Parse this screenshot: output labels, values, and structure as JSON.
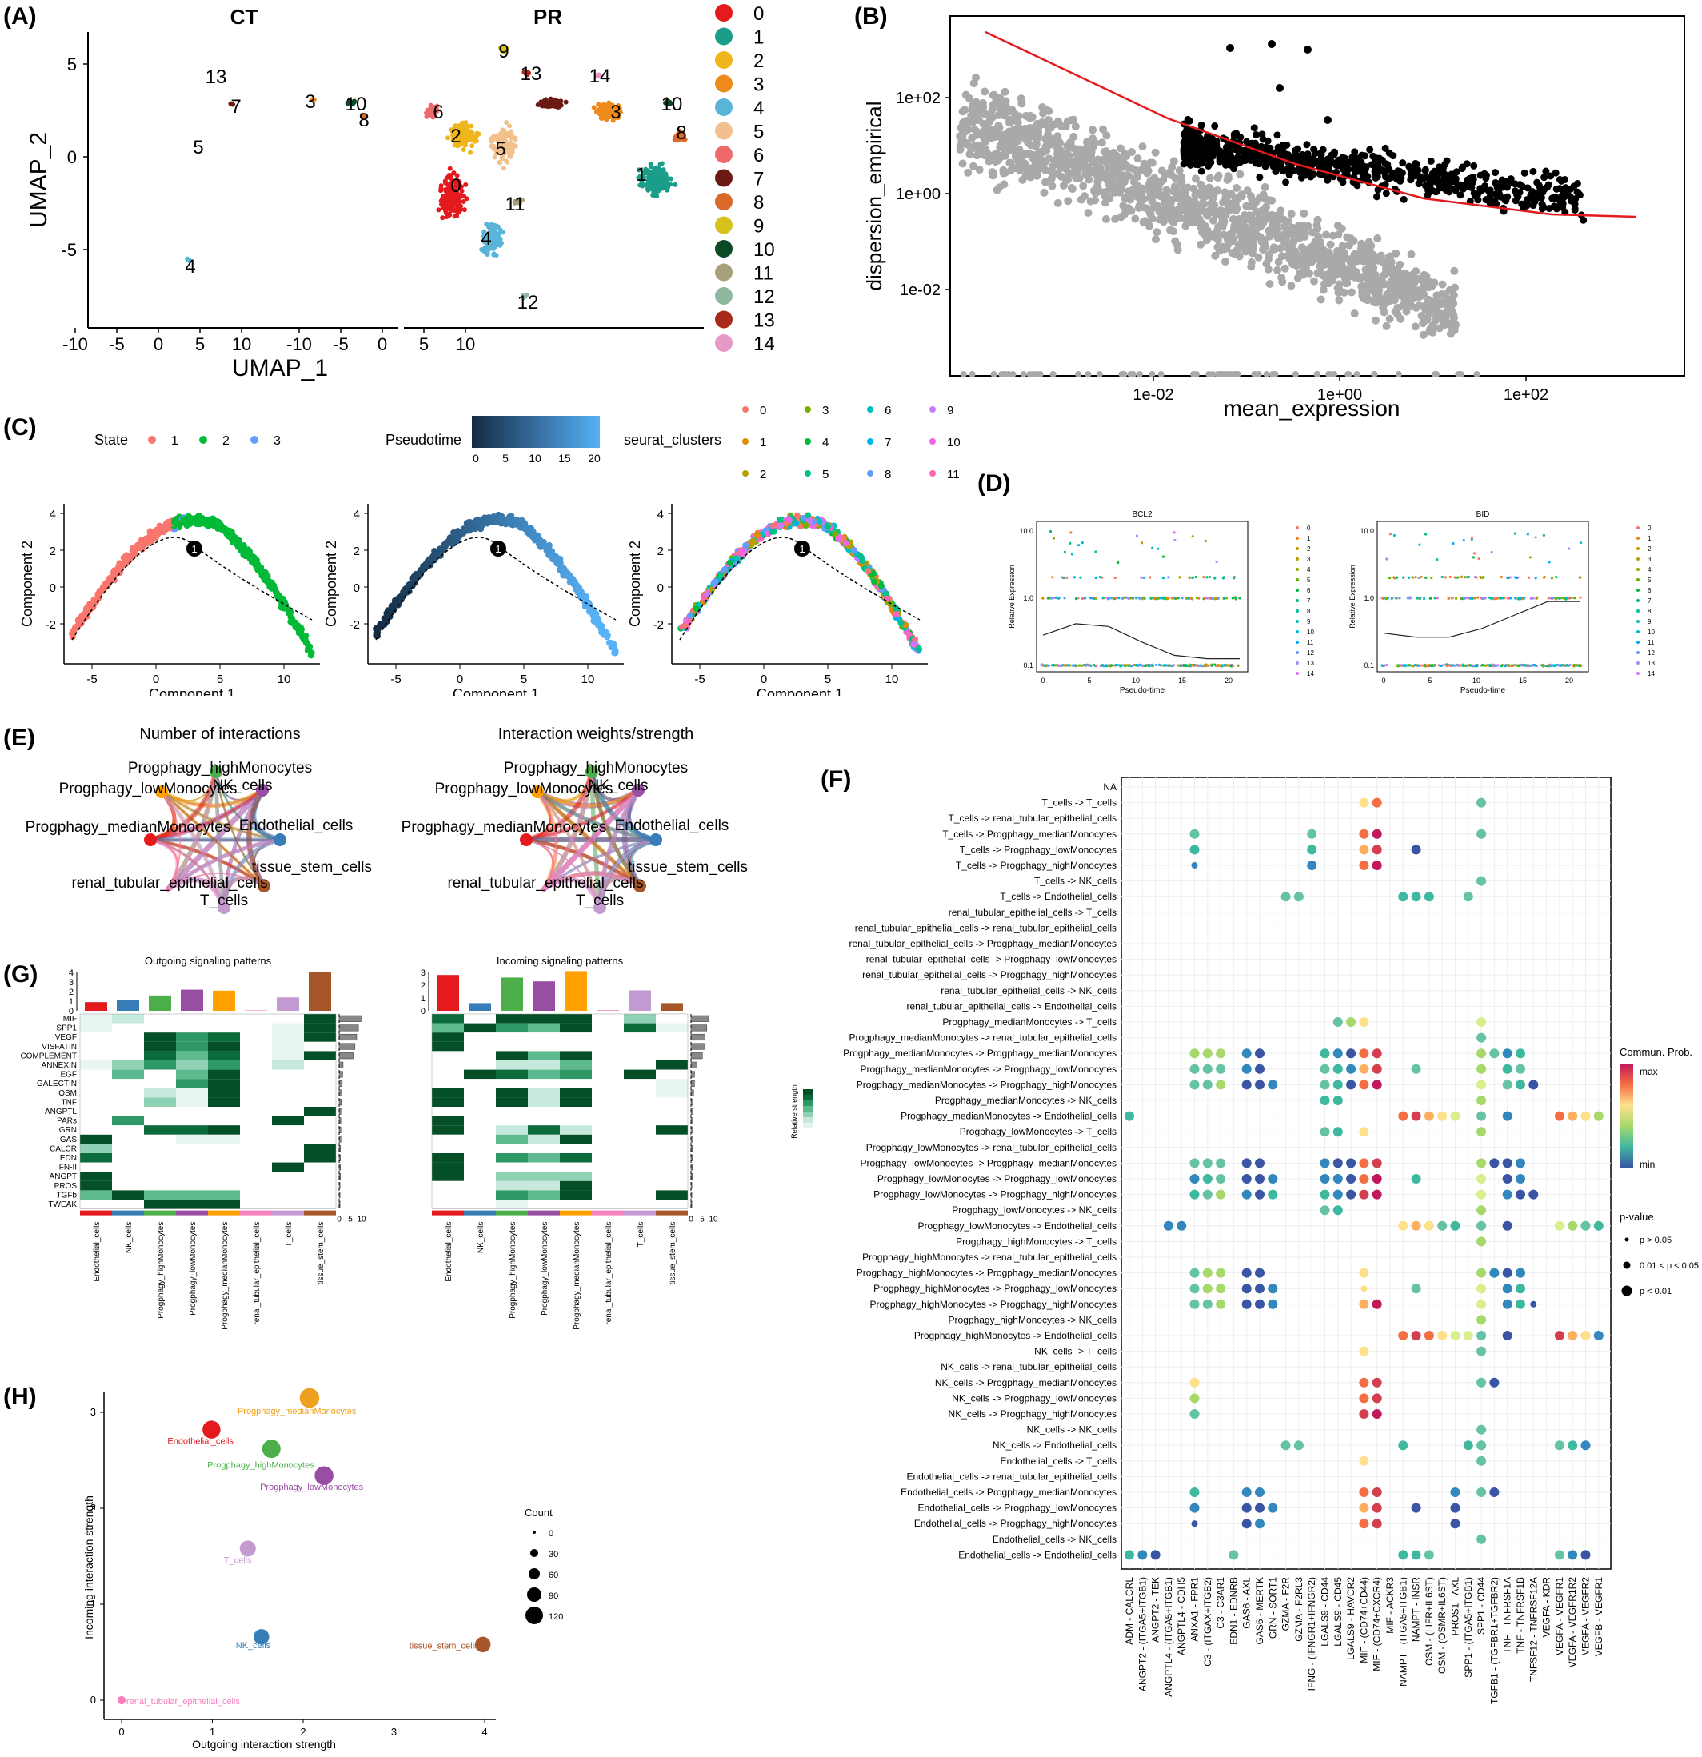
{
  "panels": {
    "A": {
      "label": "(A)",
      "facets": [
        "CT",
        "PR"
      ],
      "xlabel": "UMAP_1",
      "ylabel": "UMAP_2",
      "xticks": [
        "-10",
        "-5",
        "0",
        "5",
        "10"
      ],
      "yticks": [
        "5",
        "0",
        "-5"
      ],
      "legend": [
        {
          "id": "0",
          "color": "#e41a1c"
        },
        {
          "id": "1",
          "color": "#1b9e89"
        },
        {
          "id": "2",
          "color": "#f0b41c"
        },
        {
          "id": "3",
          "color": "#ee8a1a"
        },
        {
          "id": "4",
          "color": "#5ab4d8"
        },
        {
          "id": "5",
          "color": "#f2c08c"
        },
        {
          "id": "6",
          "color": "#ee6a6a"
        },
        {
          "id": "7",
          "color": "#6b1a14"
        },
        {
          "id": "8",
          "color": "#d96a2a"
        },
        {
          "id": "9",
          "color": "#d6c21a"
        },
        {
          "id": "10",
          "color": "#0c4a26"
        },
        {
          "id": "11",
          "color": "#a8a07a"
        },
        {
          "id": "12",
          "color": "#8fb8a0"
        },
        {
          "id": "13",
          "color": "#a82a1a"
        },
        {
          "id": "14",
          "color": "#e79ac8"
        }
      ],
      "ct_labels": [
        "13",
        "7",
        "3",
        "10",
        "8",
        "5",
        "4"
      ],
      "pr_labels": [
        "9",
        "13",
        "14",
        "6",
        "2",
        "5",
        "3",
        "10",
        "8",
        "0",
        "1",
        "11",
        "4",
        "12"
      ]
    },
    "B": {
      "label": "(B)",
      "xlabel": "mean_expression",
      "ylabel": "dispersion_empirical",
      "xticks": [
        "1e-02",
        "1e+00",
        "1e+02"
      ],
      "yticks": [
        "1e+02",
        "1e+00",
        "1e-02"
      ]
    },
    "C": {
      "label": "(C)",
      "legend_state": {
        "title": "State",
        "items": [
          "1",
          "2",
          "3"
        ],
        "colors": [
          "#f8766d",
          "#00ba38",
          "#619cff"
        ]
      },
      "legend_pseudotime": {
        "title": "Pseudotime",
        "ticks": [
          "0",
          "5",
          "10",
          "15",
          "20"
        ]
      },
      "legend_clusters": {
        "title": "seurat_clusters",
        "items": [
          "0",
          "1",
          "2",
          "3",
          "4",
          "5",
          "6",
          "7",
          "8",
          "9",
          "10",
          "11"
        ]
      },
      "xlabel": "Component 1",
      "ylabel": "Component 2",
      "xticks": [
        "-5",
        "0",
        "5",
        "10"
      ],
      "yticks": [
        "4",
        "2",
        "0",
        "-2"
      ],
      "branch_label": "1"
    },
    "D": {
      "label": "(D)",
      "plots": [
        {
          "title": "BCL2",
          "curve": [
            0.45,
            0.62,
            0.58,
            0.35,
            0.15,
            0.1,
            0.1
          ]
        },
        {
          "title": "BID",
          "curve": [
            0.48,
            0.42,
            0.42,
            0.55,
            0.75,
            0.95,
            0.95
          ]
        }
      ],
      "xlabel": "Pseudo-time",
      "ylabel": "Relative Expression",
      "xticks": [
        "0",
        "5",
        "10",
        "15",
        "20"
      ],
      "yticks": [
        "10.0",
        "1.0",
        "0.1"
      ],
      "legend": [
        "0",
        "1",
        "2",
        "3",
        "4",
        "5",
        "6",
        "7",
        "8",
        "9",
        "10",
        "11",
        "12",
        "13",
        "14"
      ]
    },
    "E": {
      "label": "(E)",
      "titles": [
        "Number of interactions",
        "Interaction weights/strength"
      ],
      "nodes": [
        "Progphagy_highMonocytes",
        "NK_cells",
        "Progphagy_lowMonocytes",
        "Progphagy_medianMonocytes",
        "Endothelial_cells",
        "tissue_stem_cells",
        "renal_tubular_epithelial_cells",
        "T_cells"
      ]
    },
    "F": {
      "label": "(F)",
      "rows": [
        "NA",
        "T_cells -> T_cells",
        "T_cells -> renal_tubular_epithelial_cells",
        "T_cells -> Progphagy_medianMonocytes",
        "T_cells -> Progphagy_lowMonocytes",
        "T_cells -> Progphagy_highMonocytes",
        "T_cells -> NK_cells",
        "T_cells -> Endothelial_cells",
        "renal_tubular_epithelial_cells -> T_cells",
        "renal_tubular_epithelial_cells -> renal_tubular_epithelial_cells",
        "renal_tubular_epithelial_cells -> Progphagy_medianMonocytes",
        "renal_tubular_epithelial_cells -> Progphagy_lowMonocytes",
        "renal_tubular_epithelial_cells -> Progphagy_highMonocytes",
        "renal_tubular_epithelial_cells -> NK_cells",
        "renal_tubular_epithelial_cells -> Endothelial_cells",
        "Progphagy_medianMonocytes -> T_cells",
        "Progphagy_medianMonocytes -> renal_tubular_epithelial_cells",
        "Progphagy_medianMonocytes -> Progphagy_medianMonocytes",
        "Progphagy_medianMonocytes -> Progphagy_lowMonocytes",
        "Progphagy_medianMonocytes -> Progphagy_highMonocytes",
        "Progphagy_medianMonocytes -> NK_cells",
        "Progphagy_medianMonocytes -> Endothelial_cells",
        "Progphagy_lowMonocytes -> T_cells",
        "Progphagy_lowMonocytes -> renal_tubular_epithelial_cells",
        "Progphagy_lowMonocytes -> Progphagy_medianMonocytes",
        "Progphagy_lowMonocytes -> Progphagy_lowMonocytes",
        "Progphagy_lowMonocytes -> Progphagy_highMonocytes",
        "Progphagy_lowMonocytes -> NK_cells",
        "Progphagy_lowMonocytes -> Endothelial_cells",
        "Progphagy_highMonocytes -> T_cells",
        "Progphagy_highMonocytes -> renal_tubular_epithelial_cells",
        "Progphagy_highMonocytes -> Progphagy_medianMonocytes",
        "Progphagy_highMonocytes -> Progphagy_lowMonocytes",
        "Progphagy_highMonocytes -> Progphagy_highMonocytes",
        "Progphagy_highMonocytes -> NK_cells",
        "Progphagy_highMonocytes -> Endothelial_cells",
        "NK_cells -> T_cells",
        "NK_cells -> renal_tubular_epithelial_cells",
        "NK_cells -> Progphagy_medianMonocytes",
        "NK_cells -> Progphagy_lowMonocytes",
        "NK_cells -> Progphagy_highMonocytes",
        "NK_cells -> NK_cells",
        "NK_cells -> Endothelial_cells",
        "Endothelial_cells -> T_cells",
        "Endothelial_cells -> renal_tubular_epithelial_cells",
        "Endothelial_cells -> Progphagy_medianMonocytes",
        "Endothelial_cells -> Progphagy_lowMonocytes",
        "Endothelial_cells -> Progphagy_highMonocytes",
        "Endothelial_cells -> NK_cells",
        "Endothelial_cells -> Endothelial_cells"
      ],
      "columns": [
        "ADM - CALCRL",
        "ANGPT2 - (ITGA5+ITGB1)",
        "ANGPT2 - TEK",
        "ANGPTL4 - (ITGA5+ITGB1)",
        "ANGPTL4 - CDH5",
        "ANXA1 - FPR1",
        "C3 - (ITGAX+ITGB2)",
        "C3 - C3AR1",
        "EDN1 - EDNRB",
        "GAS6 - AXL",
        "GAS6 - MERTK",
        "GRN - SORT1",
        "GZMA - F2R",
        "GZMA - F2RL3",
        "IFNG - (IFNGR1+IFNGR2)",
        "LGALS9 - CD44",
        "LGALS9 - CD45",
        "LGALS9 - HAVCR2",
        "MIF - (CD74+CD44)",
        "MIF - (CD74+CXCR4)",
        "MIF - ACKR3",
        "NAMPT - (ITGA5+ITGB1)",
        "NAMPT - INSR",
        "OSM - (LIFR+IL6ST)",
        "OSM - (OSMR+IL6ST)",
        "PROS1 - AXL",
        "SPP1 - (ITGA5+ITGB1)",
        "SPP1 - CD44",
        "TGFB1 - (TGFBR1+TGFBR2)",
        "TNF - TNFRSF1A",
        "TNF - TNFRSF1B",
        "TNFSF12 - TNFRSF12A",
        "VEGFA - KDR",
        "VEGFA - VEGFR1",
        "VEGFA - VEGFR1R2",
        "VEGFA - VEGFR2",
        "VEGFB - VEGFR1"
      ],
      "legend_prob": {
        "title": "Commun. Prob.",
        "max": "max",
        "min": "min"
      },
      "legend_p": {
        "title": "p-value",
        "items": [
          "p > 0.05",
          "0.01 < p < 0.05",
          "p < 0.01"
        ]
      }
    },
    "G": {
      "label": "(G)",
      "titles": [
        "Outgoing signaling patterns",
        "Incoming signaling patterns"
      ],
      "pathways": [
        "MIF",
        "SPP1",
        "VEGF",
        "VISFATIN",
        "COMPLEMENT",
        "ANNEXIN",
        "EGF",
        "GALECTIN",
        "OSM",
        "TNF",
        "ANGPTL",
        "PARs",
        "GRN",
        "GAS",
        "CALCR",
        "EDN",
        "IFN-II",
        "ANGPT",
        "PROS",
        "TGFb",
        "TWEAK"
      ],
      "cells": [
        "Endothelial_cells",
        "NK_cells",
        "Progphagy_highMonocytes",
        "Progphagy_lowMonocytes",
        "Progphagy_medianMonocytes",
        "renal_tubular_epithelial_cells",
        "T_cells",
        "tissue_stem_cells"
      ],
      "cell_colors": [
        "#e41a1c",
        "#377eb8",
        "#4daf4a",
        "#984ea3",
        "#ff9f00",
        "#f781bf",
        "#c49bd0",
        "#a65628"
      ],
      "bar_ticks": [
        "0",
        "1",
        "2",
        "3",
        "4"
      ],
      "in_bar_ticks": [
        "0",
        "1",
        "2",
        "3"
      ],
      "side_ticks": [
        "0",
        "5",
        "10"
      ],
      "legend_title": "Relative strength",
      "legend_ticks": [
        "0",
        "1"
      ]
    },
    "H": {
      "label": "(H)",
      "xlabel": "Outgoing interaction strength",
      "ylabel": "Incoming interaction strength",
      "xticks": [
        "0",
        "1",
        "2",
        "3",
        "4"
      ],
      "yticks": [
        "0",
        "1",
        "2",
        "3"
      ],
      "legend_title": "Count",
      "legend_items": [
        "0",
        "30",
        "60",
        "90",
        "120"
      ]
    }
  },
  "chart_data": [
    {
      "type": "scatter",
      "panel": "H",
      "xlabel": "Outgoing interaction strength",
      "ylabel": "Incoming interaction strength",
      "xlim": [
        -0.15,
        4.2
      ],
      "ylim": [
        -0.05,
        3.3
      ],
      "points": [
        {
          "name": "Progphagy_medianMonocytes",
          "x": 2.07,
          "y": 3.15,
          "count": 95,
          "color": "#f0a020"
        },
        {
          "name": "Endothelial_cells",
          "x": 0.99,
          "y": 2.82,
          "count": 75,
          "color": "#e41a1c"
        },
        {
          "name": "Progphagy_highMonocytes",
          "x": 1.65,
          "y": 2.62,
          "count": 80,
          "color": "#4daf4a"
        },
        {
          "name": "Progphagy_lowMonocytes",
          "x": 2.23,
          "y": 2.34,
          "count": 85,
          "color": "#984ea3"
        },
        {
          "name": "T_cells",
          "x": 1.39,
          "y": 1.58,
          "count": 55,
          "color": "#c49bd0"
        },
        {
          "name": "NK_cells",
          "x": 1.54,
          "y": 0.66,
          "count": 50,
          "color": "#377eb8"
        },
        {
          "name": "tissue_stem_cells",
          "x": 3.98,
          "y": 0.58,
          "count": 50,
          "color": "#a65628"
        },
        {
          "name": "renal_tubular_epithelial_cells",
          "x": 0.0,
          "y": 0.0,
          "count": 5,
          "color": "#f781bf"
        }
      ]
    },
    {
      "type": "bar",
      "panel": "G-outgoing",
      "categories": [
        "Endothelial_cells",
        "NK_cells",
        "Progphagy_highMonocytes",
        "Progphagy_lowMonocytes",
        "Progphagy_medianMonocytes",
        "renal_tubular_epithelial_cells",
        "T_cells",
        "tissue_stem_cells"
      ],
      "values": [
        0.9,
        1.1,
        1.6,
        2.2,
        2.1,
        0.05,
        1.4,
        4.0
      ],
      "ylim": [
        0,
        4
      ]
    },
    {
      "type": "bar",
      "panel": "G-incoming",
      "categories": [
        "Endothelial_cells",
        "NK_cells",
        "Progphagy_highMonocytes",
        "Progphagy_lowMonocytes",
        "Progphagy_medianMonocytes",
        "renal_tubular_epithelial_cells",
        "T_cells",
        "tissue_stem_cells"
      ],
      "values": [
        2.8,
        0.6,
        2.6,
        2.3,
        3.1,
        0.05,
        1.6,
        0.6
      ],
      "ylim": [
        0,
        3
      ]
    }
  ]
}
